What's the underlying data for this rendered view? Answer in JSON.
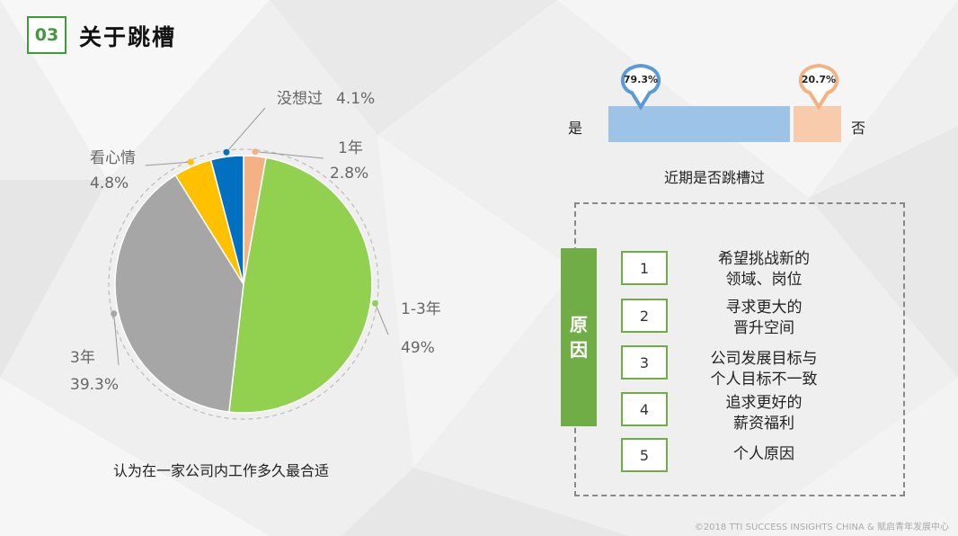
{
  "header": {
    "section_number": "03",
    "title": "关于跳槽"
  },
  "chart_data": [
    {
      "type": "pie",
      "title": "认为在一家公司内工作多久最合适",
      "categories": [
        "1年",
        "1-3年",
        "3年",
        "看心情",
        "没想过"
      ],
      "values": [
        2.8,
        49,
        39.3,
        4.8,
        4.1
      ],
      "value_labels": [
        "2.8%",
        "49%",
        "39.3%",
        "4.8%",
        "4.1%"
      ],
      "colors": [
        "#f4b183",
        "#92d050",
        "#a6a6a6",
        "#ffc000",
        "#0070c0"
      ]
    },
    {
      "type": "bar",
      "orientation": "horizontal-stacked",
      "title": "近期是否跳槽过",
      "categories": [
        "是",
        "否"
      ],
      "values": [
        79.3,
        20.7
      ],
      "value_labels": [
        "79.3%",
        "20.7%"
      ],
      "colors": [
        "#9dc3e6",
        "#f8cbad"
      ]
    }
  ],
  "reasons": {
    "tag": [
      "原",
      "因"
    ],
    "items": [
      {
        "number": "1",
        "text": "希望挑战新的\n领域、岗位"
      },
      {
        "number": "2",
        "text": "寻求更大的\n晋升空间"
      },
      {
        "number": "3",
        "text": "公司发展目标与\n个人目标不一致"
      },
      {
        "number": "4",
        "text": "追求更好的\n薪资福利"
      },
      {
        "number": "5",
        "text": "个人原因"
      }
    ]
  },
  "footer": "©2018 TTI SUCCESS INSIGHTS CHINA & 赋启青年发展中心"
}
